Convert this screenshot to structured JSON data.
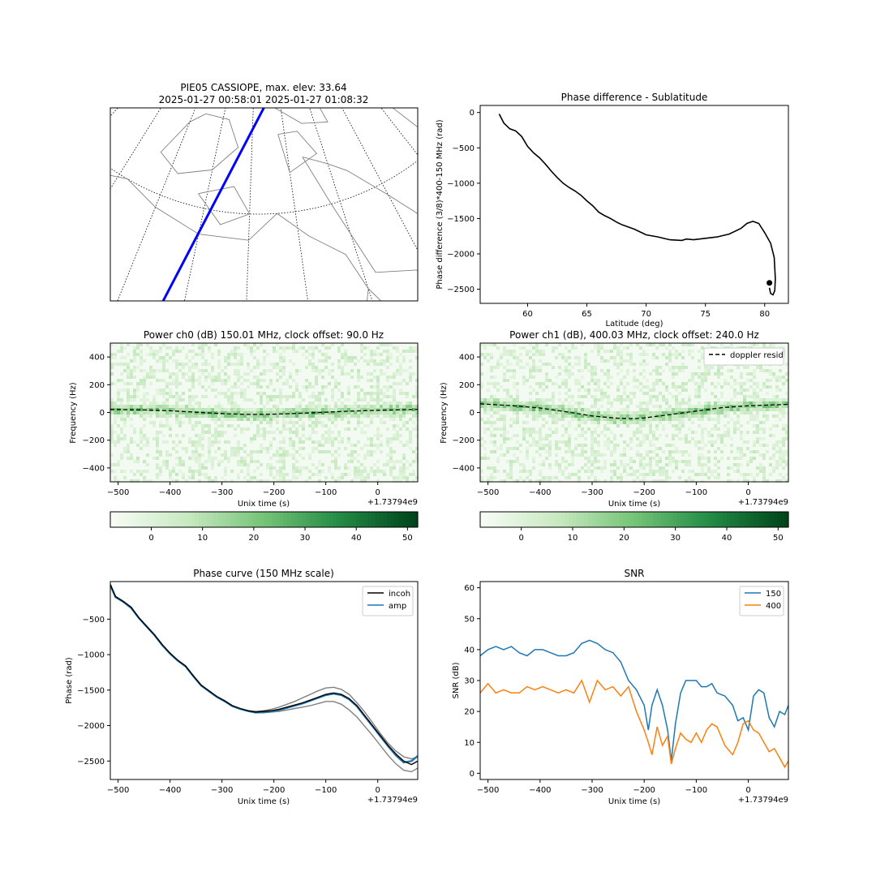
{
  "chart_data": [
    {
      "type": "map",
      "title_line1": "PIE05 CASSIOPE, max. elev: 33.64",
      "title_line2": "2025-01-27 00:58:01 2025-01-27 01:08:32",
      "projection": "polar stereographic, north pole",
      "coastlines_color": "#808080",
      "graticule_style": "dotted",
      "track_color": "#0000ff",
      "station_color": "#ff0000",
      "track_points_lonlat": [
        [
          -128.5,
          46.5
        ],
        [
          -115,
          58
        ],
        [
          -85,
          81
        ]
      ],
      "station_lonlat": [
        -110.5,
        53
      ],
      "track_end_marker": "dot at end of track"
    },
    {
      "type": "line",
      "title": "Phase difference - Sublatitude",
      "xlabel": "Latitude (deg)",
      "ylabel": "Phase difference (3/8)*400-150 MHz (rad)",
      "xlim": [
        56,
        82
      ],
      "ylim": [
        -2700,
        100
      ],
      "xticks": [
        60,
        65,
        70,
        75,
        80
      ],
      "yticks": [
        0,
        -500,
        -1000,
        -1500,
        -2000,
        -2500
      ],
      "line_color": "#000000",
      "x": [
        57.6,
        58.0,
        58.5,
        59.0,
        59.5,
        60.0,
        60.5,
        61.0,
        61.5,
        62.0,
        62.5,
        63.0,
        63.5,
        64.0,
        64.5,
        65.0,
        65.5,
        66.0,
        66.5,
        67.0,
        67.5,
        68.0,
        68.5,
        69.0,
        69.5,
        70.0,
        71.0,
        72.0,
        73.0,
        73.4,
        74.0,
        75.0,
        76.0,
        77.0,
        78.0,
        78.5,
        79.0,
        79.5,
        80.0,
        80.5,
        80.8,
        80.9,
        80.85,
        80.7,
        80.5,
        80.4
      ],
      "y": [
        -20,
        -150,
        -230,
        -260,
        -340,
        -480,
        -570,
        -640,
        -730,
        -830,
        -920,
        -1000,
        -1060,
        -1110,
        -1170,
        -1250,
        -1320,
        -1410,
        -1460,
        -1500,
        -1550,
        -1590,
        -1620,
        -1650,
        -1690,
        -1730,
        -1760,
        -1800,
        -1810,
        -1790,
        -1800,
        -1780,
        -1760,
        -1720,
        -1640,
        -1570,
        -1540,
        -1570,
        -1700,
        -1850,
        -2050,
        -2350,
        -2520,
        -2580,
        -2560,
        -2480
      ],
      "marker_point": [
        80.4,
        -2410
      ]
    },
    {
      "type": "heatmap",
      "title": "Power ch0 (dB) 150.01 MHz, clock offset: 90.0 Hz",
      "xlabel": "Unix time (s)",
      "ylabel": "Frequency (Hz)",
      "x_offset_text": "+1.73794e9",
      "xlim": [
        -515,
        77
      ],
      "ylim": [
        -500,
        500
      ],
      "xticks": [
        -500,
        -400,
        -300,
        -200,
        -100,
        0
      ],
      "yticks": [
        400,
        200,
        0,
        -200,
        -400
      ],
      "colormap": "Greens",
      "colorbar_range": [
        -8,
        52
      ],
      "colorbar_ticks": [
        0,
        10,
        20,
        30,
        40,
        50
      ],
      "doppler_x": [
        -515,
        -450,
        -400,
        -350,
        -300,
        -250,
        -220,
        -200,
        -150,
        -100,
        -50,
        0,
        50,
        77
      ],
      "doppler_y": [
        22,
        18,
        12,
        2,
        -8,
        -14,
        -14,
        -12,
        -6,
        2,
        10,
        16,
        20,
        22
      ]
    },
    {
      "type": "heatmap",
      "title": "Power ch1 (dB), 400.03 MHz, clock offset: 240.0 Hz",
      "xlabel": "Unix time (s)",
      "ylabel": "Frequency (Hz)",
      "x_offset_text": "+1.73794e9",
      "xlim": [
        -515,
        77
      ],
      "ylim": [
        -500,
        500
      ],
      "xticks": [
        -500,
        -400,
        -300,
        -200,
        -100,
        0
      ],
      "yticks": [
        400,
        200,
        0,
        -200,
        -400
      ],
      "colormap": "Greens",
      "colorbar_range": [
        -8,
        52
      ],
      "colorbar_ticks": [
        0,
        10,
        20,
        30,
        40,
        50
      ],
      "legend": "doppler resid",
      "legend_position": "top-right",
      "doppler_x": [
        -515,
        -450,
        -400,
        -350,
        -300,
        -250,
        -220,
        -200,
        -150,
        -100,
        -50,
        0,
        50,
        77
      ],
      "doppler_y": [
        62,
        48,
        32,
        5,
        -25,
        -42,
        -45,
        -40,
        -15,
        10,
        35,
        48,
        55,
        58
      ]
    },
    {
      "type": "line",
      "title": "Phase curve (150 MHz scale)",
      "xlabel": "Unix time (s)",
      "ylabel": "Phase (rad)",
      "x_offset_text": "+1.73794e9",
      "xlim": [
        -515,
        77
      ],
      "ylim": [
        -2760,
        30
      ],
      "xticks": [
        -500,
        -400,
        -300,
        -200,
        -100,
        0
      ],
      "yticks": [
        -500,
        -1000,
        -1500,
        -2000,
        -2500
      ],
      "legend_position": "top-right",
      "x": [
        -515,
        -505,
        -490,
        -475,
        -460,
        -445,
        -430,
        -415,
        -400,
        -385,
        -370,
        -355,
        -340,
        -325,
        -310,
        -295,
        -280,
        -265,
        -250,
        -235,
        -220,
        -205,
        -190,
        -175,
        -160,
        -145,
        -130,
        -115,
        -100,
        -85,
        -70,
        -55,
        -40,
        -25,
        -10,
        5,
        20,
        35,
        50,
        65,
        77
      ],
      "series": [
        {
          "name": "incoh",
          "color": "#000000",
          "values": [
            -10,
            -180,
            -250,
            -330,
            -480,
            -600,
            -720,
            -860,
            -980,
            -1080,
            -1160,
            -1300,
            -1430,
            -1510,
            -1590,
            -1650,
            -1720,
            -1760,
            -1790,
            -1810,
            -1800,
            -1790,
            -1770,
            -1740,
            -1710,
            -1680,
            -1640,
            -1600,
            -1560,
            -1540,
            -1560,
            -1620,
            -1720,
            -1860,
            -2000,
            -2140,
            -2280,
            -2400,
            -2500,
            -2550,
            -2500
          ]
        },
        {
          "name": "amp",
          "color": "#1f77b4",
          "values": [
            -20,
            -190,
            -255,
            -340,
            -485,
            -605,
            -725,
            -865,
            -985,
            -1085,
            -1165,
            -1305,
            -1435,
            -1515,
            -1595,
            -1655,
            -1725,
            -1765,
            -1795,
            -1815,
            -1810,
            -1800,
            -1780,
            -1750,
            -1720,
            -1690,
            -1650,
            -1610,
            -1570,
            -1550,
            -1570,
            -1630,
            -1730,
            -1870,
            -2010,
            -2150,
            -2290,
            -2420,
            -2520,
            -2500,
            -2430
          ]
        },
        {
          "color": "#808080",
          "values": [
            -10,
            -180,
            -250,
            -330,
            -480,
            -600,
            -720,
            -860,
            -980,
            -1080,
            -1160,
            -1300,
            -1430,
            -1510,
            -1590,
            -1650,
            -1720,
            -1760,
            -1790,
            -1800,
            -1790,
            -1770,
            -1740,
            -1700,
            -1660,
            -1610,
            -1560,
            -1510,
            -1470,
            -1460,
            -1490,
            -1560,
            -1680,
            -1810,
            -1960,
            -2110,
            -2250,
            -2360,
            -2440,
            -2470,
            -2440
          ]
        },
        {
          "color": "#808080",
          "values": [
            -10,
            -180,
            -250,
            -330,
            -480,
            -600,
            -720,
            -860,
            -980,
            -1080,
            -1160,
            -1300,
            -1430,
            -1510,
            -1590,
            -1650,
            -1720,
            -1760,
            -1800,
            -1820,
            -1820,
            -1810,
            -1800,
            -1780,
            -1760,
            -1740,
            -1720,
            -1690,
            -1660,
            -1660,
            -1700,
            -1780,
            -1880,
            -2010,
            -2140,
            -2280,
            -2420,
            -2540,
            -2630,
            -2650,
            -2600
          ]
        }
      ]
    },
    {
      "type": "line",
      "title": "SNR",
      "xlabel": "Unix time (s)",
      "ylabel": "SNR (dB)",
      "x_offset_text": "+1.73794e9",
      "xlim": [
        -515,
        77
      ],
      "ylim": [
        -2,
        62
      ],
      "xticks": [
        -500,
        -400,
        -300,
        -200,
        -100,
        0
      ],
      "yticks": [
        0,
        10,
        20,
        30,
        40,
        50,
        60
      ],
      "legend_position": "top-right",
      "x": [
        -515,
        -500,
        -485,
        -470,
        -455,
        -440,
        -425,
        -410,
        -395,
        -380,
        -365,
        -350,
        -335,
        -320,
        -305,
        -290,
        -275,
        -260,
        -245,
        -230,
        -215,
        -200,
        -192,
        -185,
        -175,
        -165,
        -155,
        -148,
        -140,
        -130,
        -120,
        -110,
        -100,
        -90,
        -80,
        -70,
        -60,
        -45,
        -30,
        -20,
        -10,
        0,
        10,
        20,
        30,
        40,
        50,
        60,
        70,
        77
      ],
      "series": [
        {
          "name": "150",
          "color": "#1f77b4",
          "values": [
            38,
            40,
            41,
            40,
            41,
            39,
            38,
            40,
            40,
            39,
            38,
            38,
            39,
            42,
            43,
            42,
            40,
            39,
            36,
            30,
            27,
            22,
            14,
            22,
            27,
            22,
            14,
            4,
            16,
            26,
            30,
            30,
            30,
            28,
            28,
            29,
            26,
            25,
            22,
            17,
            18,
            14,
            25,
            27,
            26,
            18,
            15,
            20,
            19,
            22
          ]
        },
        {
          "name": "400",
          "color": "#ff7f0e",
          "values": [
            26,
            29,
            26,
            27,
            26,
            26,
            28,
            27,
            28,
            27,
            26,
            27,
            26,
            30,
            23,
            30,
            27,
            28,
            25,
            28,
            20,
            14,
            10,
            6,
            15,
            9,
            12,
            3,
            8,
            13,
            11,
            10,
            13,
            10,
            14,
            16,
            15,
            9,
            6,
            10,
            16,
            17,
            14,
            13,
            10,
            7,
            8,
            5,
            2,
            4
          ]
        }
      ]
    }
  ]
}
